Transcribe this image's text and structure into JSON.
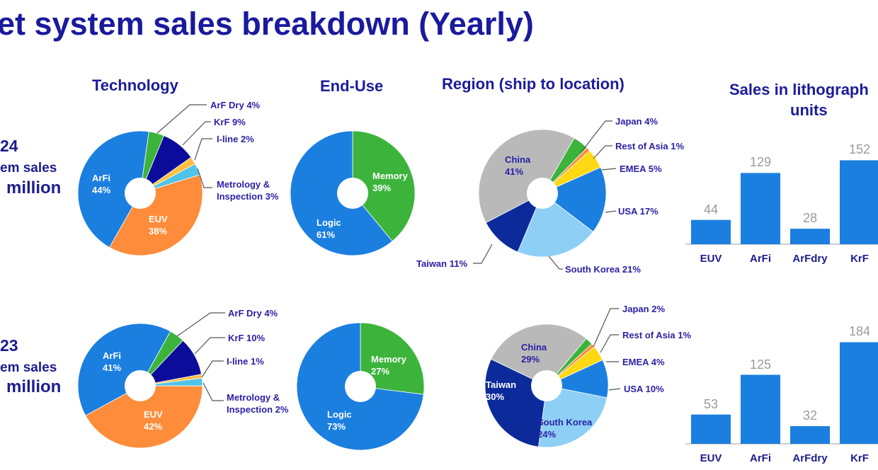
{
  "title": "et system sales breakdown (Yearly)",
  "side_2024": {
    "year": "24",
    "line2": "em sales",
    "line3": "million"
  },
  "side_2023": {
    "year": "23",
    "line2": "em sales",
    "line3": "million"
  },
  "headings": {
    "technology": "Technology",
    "end_use": "End-Use",
    "region": "Region (ship to location)",
    "sales_line1": "Sales in lithograph",
    "sales_line2": "units"
  },
  "colors": {
    "title": "#1a1a9e",
    "bar": "#1b7fe0",
    "label": "#2a1fa6"
  },
  "chart_data": [
    {
      "id": "tech2024",
      "type": "pie",
      "title": "Technology",
      "year": "2024",
      "slices": [
        {
          "name": "ArF Dry",
          "value": 4,
          "color": "#3cb43c"
        },
        {
          "name": "KrF",
          "value": 9,
          "color": "#0c0c9a"
        },
        {
          "name": "I-line",
          "value": 2,
          "color": "#ffc040"
        },
        {
          "name": "Metrology & Inspection",
          "name1": "Metrology &",
          "name2": "Inspection",
          "value": 3,
          "color": "#4fc3e8"
        },
        {
          "name": "EUV",
          "value": 38,
          "color": "#ff8c3a"
        },
        {
          "name": "ArFi",
          "value": 44,
          "color": "#1b7fe0"
        }
      ]
    },
    {
      "id": "end2024",
      "type": "pie",
      "title": "End-Use",
      "year": "2024",
      "slices": [
        {
          "name": "Memory",
          "value": 39,
          "color": "#3cb43c"
        },
        {
          "name": "Logic",
          "value": 61,
          "color": "#1b7fe0"
        }
      ]
    },
    {
      "id": "reg2024",
      "type": "pie",
      "title": "Region (ship to location)",
      "year": "2024",
      "slices": [
        {
          "name": "Japan",
          "value": 4,
          "color": "#3cb43c"
        },
        {
          "name": "Rest of Asia",
          "value": 1,
          "color": "#ff8c3a"
        },
        {
          "name": "EMEA",
          "value": 5,
          "color": "#ffd814"
        },
        {
          "name": "USA",
          "value": 17,
          "color": "#1b7fe0"
        },
        {
          "name": "South Korea",
          "value": 21,
          "color": "#8ecff5"
        },
        {
          "name": "Taiwan",
          "value": 11,
          "color": "#0c2a9a"
        },
        {
          "name": "China",
          "value": 41,
          "color": "#b9b9b9"
        }
      ]
    },
    {
      "id": "tech2023",
      "type": "pie",
      "title": "Technology",
      "year": "2023",
      "slices": [
        {
          "name": "ArF Dry",
          "value": 4,
          "color": "#3cb43c"
        },
        {
          "name": "KrF",
          "value": 10,
          "color": "#0c0c9a"
        },
        {
          "name": "I-line",
          "value": 1,
          "color": "#ffc040"
        },
        {
          "name": "Metrology & Inspection",
          "name1": "Metrology &",
          "name2": "Inspection",
          "value": 2,
          "color": "#4fc3e8"
        },
        {
          "name": "EUV",
          "value": 42,
          "color": "#ff8c3a"
        },
        {
          "name": "ArFi",
          "value": 41,
          "color": "#1b7fe0"
        }
      ]
    },
    {
      "id": "end2023",
      "type": "pie",
      "title": "End-Use",
      "year": "2023",
      "slices": [
        {
          "name": "Memory",
          "value": 27,
          "color": "#3cb43c"
        },
        {
          "name": "Logic",
          "value": 73,
          "color": "#1b7fe0"
        }
      ]
    },
    {
      "id": "reg2023",
      "type": "pie",
      "title": "Region (ship to location)",
      "year": "2023",
      "slices": [
        {
          "name": "Japan",
          "value": 2,
          "color": "#3cb43c"
        },
        {
          "name": "Rest of Asia",
          "value": 1,
          "color": "#ff8c3a"
        },
        {
          "name": "EMEA",
          "value": 4,
          "color": "#ffd814"
        },
        {
          "name": "USA",
          "value": 10,
          "color": "#1b7fe0"
        },
        {
          "name": "South Korea",
          "value": 24,
          "color": "#8ecff5"
        },
        {
          "name": "Taiwan",
          "value": 30,
          "color": "#0c2a9a"
        },
        {
          "name": "China",
          "value": 29,
          "color": "#b9b9b9"
        }
      ]
    },
    {
      "id": "bars2024",
      "type": "bar",
      "title": "Sales in lithography units",
      "year": "2024",
      "categories": [
        "EUV",
        "ArFi",
        "ArFdry",
        "KrF"
      ],
      "values": [
        44,
        129,
        28,
        152
      ]
    },
    {
      "id": "bars2023",
      "type": "bar",
      "title": "Sales in lithography units",
      "year": "2023",
      "categories": [
        "EUV",
        "ArFi",
        "ArFdry",
        "KrF"
      ],
      "values": [
        53,
        125,
        32,
        184
      ]
    }
  ]
}
